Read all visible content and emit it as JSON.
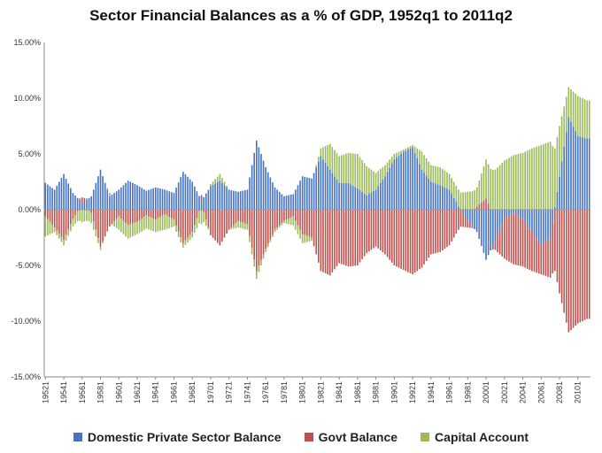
{
  "chart_data": {
    "type": "bar",
    "stacked": true,
    "title": "Sector Financial Balances as a % of GDP, 1952q1 to 2011q2",
    "xlabel": "",
    "ylabel": "",
    "ylim": [
      -15,
      15
    ],
    "y_ticks": [
      "15.00%",
      "10.00%",
      "5.00%",
      "0.00%",
      "-5.00%",
      "-10.00%",
      "-15.00%"
    ],
    "x_tick_labels": [
      "19521",
      "19541",
      "19561",
      "19581",
      "19601",
      "19621",
      "19641",
      "19661",
      "19681",
      "19701",
      "19721",
      "19741",
      "19761",
      "19781",
      "19801",
      "19821",
      "19841",
      "19861",
      "19881",
      "19901",
      "19921",
      "19941",
      "19961",
      "19981",
      "20001",
      "20021",
      "20041",
      "20061",
      "20081",
      "20101"
    ],
    "series_colors": {
      "private": "#4472C4",
      "govt": "#C0504D",
      "capital": "#9BBB59"
    },
    "yearly_values": [
      {
        "year": 1952,
        "private": 2.4,
        "govt": -0.6,
        "capital": -1.8
      },
      {
        "year": 1953,
        "private": 1.8,
        "govt": -1.6,
        "capital": -0.4
      },
      {
        "year": 1954,
        "private": 3.2,
        "govt": -2.7,
        "capital": -0.5
      },
      {
        "year": 1955,
        "private": 1.5,
        "govt": -0.8,
        "capital": -0.7
      },
      {
        "year": 1956,
        "private": 0.6,
        "govt": 0.5,
        "capital": -1.1
      },
      {
        "year": 1957,
        "private": 1.2,
        "govt": -0.3,
        "capital": -0.9
      },
      {
        "year": 1958,
        "private": 3.6,
        "govt": -3.3,
        "capital": -0.3
      },
      {
        "year": 1959,
        "private": 1.2,
        "govt": -1.5,
        "capital": 0.3
      },
      {
        "year": 1960,
        "private": 1.8,
        "govt": -0.6,
        "capital": -1.2
      },
      {
        "year": 1961,
        "private": 2.6,
        "govt": -1.4,
        "capital": -1.2
      },
      {
        "year": 1962,
        "private": 2.2,
        "govt": -1.1,
        "capital": -1.1
      },
      {
        "year": 1963,
        "private": 1.7,
        "govt": -0.5,
        "capital": -1.2
      },
      {
        "year": 1964,
        "private": 2.0,
        "govt": -0.9,
        "capital": -1.1
      },
      {
        "year": 1965,
        "private": 1.8,
        "govt": -0.4,
        "capital": -1.4
      },
      {
        "year": 1966,
        "private": 1.5,
        "govt": -0.9,
        "capital": -0.6
      },
      {
        "year": 1967,
        "private": 3.4,
        "govt": -3.0,
        "capital": -0.4
      },
      {
        "year": 1968,
        "private": 2.5,
        "govt": -2.0,
        "capital": -0.5
      },
      {
        "year": 1969,
        "private": 0.8,
        "govt": 0.5,
        "capital": -1.3
      },
      {
        "year": 1970,
        "private": 2.1,
        "govt": -2.3,
        "capital": 0.2
      },
      {
        "year": 1971,
        "private": 2.6,
        "govt": -3.2,
        "capital": 0.6
      },
      {
        "year": 1972,
        "private": 1.8,
        "govt": -1.8,
        "capital": 0.0
      },
      {
        "year": 1973,
        "private": 1.6,
        "govt": -1.0,
        "capital": -0.6
      },
      {
        "year": 1974,
        "private": 1.8,
        "govt": -1.3,
        "capital": -0.5
      },
      {
        "year": 1975,
        "private": 6.2,
        "govt": -5.5,
        "capital": -0.7
      },
      {
        "year": 1976,
        "private": 3.8,
        "govt": -3.5,
        "capital": -0.3
      },
      {
        "year": 1977,
        "private": 2.0,
        "govt": -1.8,
        "capital": -0.2
      },
      {
        "year": 1978,
        "private": 1.2,
        "govt": -1.0,
        "capital": -0.2
      },
      {
        "year": 1979,
        "private": 1.4,
        "govt": -0.6,
        "capital": -0.8
      },
      {
        "year": 1980,
        "private": 3.0,
        "govt": -2.2,
        "capital": -0.8
      },
      {
        "year": 1981,
        "private": 2.8,
        "govt": -2.5,
        "capital": -0.3
      },
      {
        "year": 1982,
        "private": 4.8,
        "govt": -5.5,
        "capital": 0.7
      },
      {
        "year": 1983,
        "private": 3.6,
        "govt": -5.9,
        "capital": 2.3
      },
      {
        "year": 1984,
        "private": 2.4,
        "govt": -4.8,
        "capital": 2.4
      },
      {
        "year": 1985,
        "private": 2.4,
        "govt": -5.1,
        "capital": 2.7
      },
      {
        "year": 1986,
        "private": 1.9,
        "govt": -5.0,
        "capital": 3.1
      },
      {
        "year": 1987,
        "private": 1.3,
        "govt": -3.9,
        "capital": 2.6
      },
      {
        "year": 1988,
        "private": 1.8,
        "govt": -3.3,
        "capital": 1.5
      },
      {
        "year": 1989,
        "private": 3.0,
        "govt": -4.0,
        "capital": 1.0
      },
      {
        "year": 1990,
        "private": 4.5,
        "govt": -5.0,
        "capital": 0.5
      },
      {
        "year": 1991,
        "private": 5.2,
        "govt": -5.4,
        "capital": 0.2
      },
      {
        "year": 1992,
        "private": 5.6,
        "govt": -5.8,
        "capital": 0.2
      },
      {
        "year": 1993,
        "private": 3.6,
        "govt": -5.2,
        "capital": 1.6
      },
      {
        "year": 1994,
        "private": 2.5,
        "govt": -4.0,
        "capital": 1.5
      },
      {
        "year": 1995,
        "private": 2.2,
        "govt": -3.8,
        "capital": 1.6
      },
      {
        "year": 1996,
        "private": 1.8,
        "govt": -3.2,
        "capital": 1.4
      },
      {
        "year": 1997,
        "private": 0.3,
        "govt": -1.8,
        "capital": 1.5
      },
      {
        "year": 1998,
        "private": -1.0,
        "govt": -0.6,
        "capital": 1.6
      },
      {
        "year": 1999,
        "private": -2.0,
        "govt": 0.3,
        "capital": 1.7
      },
      {
        "year": 2000,
        "private": -4.5,
        "govt": 1.0,
        "capital": 3.5
      },
      {
        "year": 2001,
        "private": -2.8,
        "govt": -0.8,
        "capital": 3.6
      },
      {
        "year": 2002,
        "private": -0.8,
        "govt": -3.6,
        "capital": 4.4
      },
      {
        "year": 2003,
        "private": -0.3,
        "govt": -4.6,
        "capital": 4.9
      },
      {
        "year": 2004,
        "private": -0.8,
        "govt": -4.3,
        "capital": 5.1
      },
      {
        "year": 2005,
        "private": -2.0,
        "govt": -3.5,
        "capital": 5.5
      },
      {
        "year": 2006,
        "private": -3.2,
        "govt": -2.6,
        "capital": 5.8
      },
      {
        "year": 2007,
        "private": -2.6,
        "govt": -3.5,
        "capital": 6.1
      },
      {
        "year": 2008,
        "private": 3.0,
        "govt": -7.5,
        "capital": 4.5
      },
      {
        "year": 2009,
        "private": 8.3,
        "govt": -11.0,
        "capital": 2.7
      },
      {
        "year": 2010,
        "private": 6.6,
        "govt": -10.2,
        "capital": 3.6
      },
      {
        "year": 2011,
        "private": 6.4,
        "govt": -9.8,
        "capital": 3.4
      }
    ]
  },
  "legend": {
    "private_label": "Domestic Private Sector Balance",
    "govt_label": "Govt Balance",
    "capital_label": "Capital Account"
  }
}
